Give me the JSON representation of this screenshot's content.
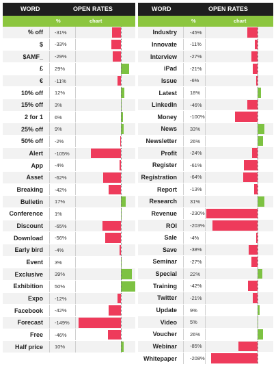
{
  "colors": {
    "header": "#1f1f1f",
    "subheader": "#8cc63f",
    "negative": "#ee3b5b",
    "positive": "#7dc242"
  },
  "headers": {
    "word": "WORD",
    "open_rates": "OPEN RATES",
    "pct": "%",
    "chart": "chart"
  },
  "chart_data": [
    {
      "type": "bar",
      "orientation": "horizontal",
      "categories": [
        "% off",
        "$",
        "$AMF_",
        "£",
        "€",
        "10% off",
        "15% off",
        "2 for 1",
        "25% off",
        "50% off",
        "Alert",
        "App",
        "Asset",
        "Breaking",
        "Bulletin",
        "Conference",
        "Discount",
        "Download",
        "Early bird",
        "Event",
        "Exclusive",
        "Exhibition",
        "Expo",
        "Facebook",
        "Forecast",
        "Free",
        "Half price"
      ],
      "labels": [
        "-31%",
        "-33%",
        "-29%",
        "29%",
        "-11%",
        "12%",
        "3%",
        "6%",
        "9%",
        "-2%",
        "-105%",
        "-4%",
        "-62%",
        "-42%",
        "17%",
        "1%",
        "-65%",
        "-56%",
        "-4%",
        "3%",
        "39%",
        "50%",
        "-12%",
        "-42%",
        "-149%",
        "-46%",
        "10%"
      ],
      "values": [
        -31,
        -33,
        -29,
        29,
        -11,
        12,
        3,
        6,
        9,
        -2,
        -105,
        -4,
        -62,
        -42,
        17,
        1,
        -65,
        -56,
        -4,
        3,
        39,
        50,
        -12,
        -42,
        -149,
        -46,
        10
      ],
      "xlim": [
        -155,
        50
      ]
    },
    {
      "type": "bar",
      "orientation": "horizontal",
      "categories": [
        "Industry",
        "Innovate",
        "Interview",
        "iPad",
        "Issue",
        "Latest",
        "LinkedIn",
        "Money",
        "News",
        "Newsletter",
        "Profit",
        "Register",
        "Registration",
        "Report",
        "Research",
        "Revenue",
        "ROI",
        "Sale",
        "Save",
        "Seminar",
        "Special",
        "Training",
        "Twitter",
        "Update",
        "Video",
        "Voucher",
        "Webinar",
        "Whitepaper"
      ],
      "labels": [
        "-45%",
        "-11%",
        "-27%",
        "-21%",
        "-6%",
        "18%",
        "-46%",
        "-100%",
        "33%",
        "26%",
        "-24%",
        "-61%",
        "-64%",
        "-13%",
        "31%",
        "-230%",
        "-203%",
        "-4%",
        "-38%",
        "-27%",
        "22%",
        "-42%",
        "-21%",
        "9%",
        "5%",
        "26%",
        "-85%",
        "-208%"
      ],
      "values": [
        -45,
        -11,
        -27,
        -21,
        -6,
        18,
        -46,
        -100,
        33,
        26,
        -24,
        -61,
        -64,
        -13,
        31,
        -230,
        -203,
        -4,
        -38,
        -27,
        22,
        -42,
        -21,
        9,
        5,
        26,
        -85,
        -208
      ],
      "xlim": [
        -230,
        35
      ]
    }
  ]
}
